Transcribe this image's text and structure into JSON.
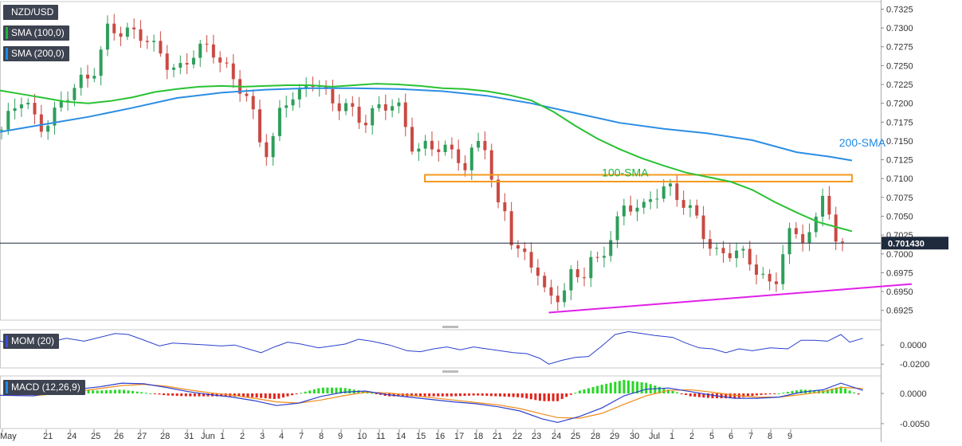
{
  "panel": {
    "symbol": "NZD/USD",
    "sma100_label": "SMA (100,0)",
    "sma200_label": "SMA (200,0)",
    "mom_label": "MOM (20)",
    "macd_label": "MACD (12,26,9)",
    "last_price": "0.701430"
  },
  "annotations": {
    "sma100": "100-SMA",
    "sma200": "200-SMA"
  },
  "colors": {
    "up": "#2e9e5b",
    "down": "#c94a43",
    "sma100": "#29c233",
    "sma200": "#2b8de3",
    "support": "#e020e8",
    "resistance": "#f39a1e",
    "mom": "#2c3fcf",
    "macd": "#2c3fcf",
    "signal": "#f08c1a",
    "hist_pos": "#27d827",
    "hist_neg": "#e2231a"
  },
  "chart_data": [
    {
      "type": "candlestick",
      "title": "NZD/USD",
      "y_ticks": [
        "0.7325",
        "0.7300",
        "0.7275",
        "0.7250",
        "0.7225",
        "0.7200",
        "0.7175",
        "0.7150",
        "0.7125",
        "0.7100",
        "0.7075",
        "0.7050",
        "0.7025",
        "0.7000",
        "0.6975",
        "0.6950",
        "0.6925"
      ],
      "x_ticks": [
        "May",
        "21",
        "24",
        "25",
        "26",
        "27",
        "28",
        "31",
        "Jun",
        "1",
        "2",
        "3",
        "4",
        "7",
        "8",
        "9",
        "10",
        "11",
        "14",
        "15",
        "16",
        "17",
        "18",
        "21",
        "22",
        "23",
        "24",
        "25",
        "28",
        "29",
        "30",
        "Jul",
        "1",
        "2",
        "5",
        "6",
        "7",
        "8",
        "9"
      ],
      "ylim": [
        0.6912,
        0.7335
      ],
      "last_price": 0.70143,
      "sma100": [
        [
          0,
          0.7217
        ],
        [
          10,
          0.7212
        ],
        [
          20,
          0.7207
        ],
        [
          30,
          0.7202
        ],
        [
          40,
          0.72
        ],
        [
          50,
          0.7203
        ],
        [
          60,
          0.7208
        ],
        [
          70,
          0.7215
        ],
        [
          80,
          0.7219
        ],
        [
          90,
          0.7222
        ],
        [
          100,
          0.7223
        ],
        [
          110,
          0.7222
        ],
        [
          120,
          0.7223
        ],
        [
          130,
          0.7224
        ],
        [
          140,
          0.7224
        ],
        [
          150,
          0.7222
        ],
        [
          160,
          0.7224
        ],
        [
          170,
          0.7226
        ],
        [
          180,
          0.7225
        ],
        [
          190,
          0.7223
        ],
        [
          200,
          0.722
        ],
        [
          210,
          0.7219
        ],
        [
          220,
          0.7216
        ],
        [
          230,
          0.7211
        ],
        [
          240,
          0.7204
        ],
        [
          250,
          0.7189
        ],
        [
          260,
          0.717
        ],
        [
          270,
          0.7153
        ],
        [
          280,
          0.7139
        ],
        [
          290,
          0.7127
        ],
        [
          300,
          0.7117
        ],
        [
          310,
          0.7108
        ],
        [
          320,
          0.7102
        ],
        [
          330,
          0.7096
        ],
        [
          340,
          0.7085
        ],
        [
          350,
          0.7069
        ],
        [
          360,
          0.7055
        ],
        [
          370,
          0.7042
        ],
        [
          380,
          0.7034
        ],
        [
          385,
          0.703
        ]
      ],
      "sma200": [
        [
          0,
          0.7162
        ],
        [
          20,
          0.7172
        ],
        [
          40,
          0.7182
        ],
        [
          60,
          0.7194
        ],
        [
          80,
          0.7207
        ],
        [
          100,
          0.7214
        ],
        [
          120,
          0.7218
        ],
        [
          140,
          0.722
        ],
        [
          160,
          0.722
        ],
        [
          180,
          0.7219
        ],
        [
          200,
          0.7216
        ],
        [
          220,
          0.721
        ],
        [
          240,
          0.72
        ],
        [
          260,
          0.7187
        ],
        [
          280,
          0.7174
        ],
        [
          300,
          0.7166
        ],
        [
          320,
          0.716
        ],
        [
          340,
          0.7151
        ],
        [
          360,
          0.7135
        ],
        [
          375,
          0.7129
        ],
        [
          385,
          0.7124
        ]
      ],
      "resistance_zone": {
        "x": [
          192,
          385
        ],
        "y": [
          0.7096,
          0.7105
        ]
      },
      "support_line": {
        "x": [
          248,
          412
        ],
        "y": [
          0.6922,
          0.696
        ]
      },
      "annotations": [
        {
          "text": "100-SMA",
          "x": 272,
          "y": 0.7145
        },
        {
          "text": "200-SMA",
          "x": 390,
          "y": 0.713
        }
      ]
    },
    {
      "type": "line",
      "title": "MOM (20)",
      "y_ticks": [
        "0.0000",
        "-0.0200"
      ],
      "ylim": [
        -0.024,
        0.016
      ],
      "values": [
        [
          0,
          0.004
        ],
        [
          8,
          0.001
        ],
        [
          15,
          0.0
        ],
        [
          22,
          0.003
        ],
        [
          30,
          0.007
        ],
        [
          38,
          0.004
        ],
        [
          45,
          0.008
        ],
        [
          52,
          0.012
        ],
        [
          58,
          0.011
        ],
        [
          64,
          0.006
        ],
        [
          72,
          -0.001
        ],
        [
          78,
          0.002
        ],
        [
          86,
          0.001
        ],
        [
          94,
          0.0
        ],
        [
          100,
          -0.001
        ],
        [
          106,
          0.0
        ],
        [
          112,
          -0.004
        ],
        [
          118,
          -0.008
        ],
        [
          124,
          -0.002
        ],
        [
          130,
          0.003
        ],
        [
          136,
          0.001
        ],
        [
          144,
          -0.003
        ],
        [
          150,
          -0.001
        ],
        [
          156,
          0.001
        ],
        [
          162,
          0.006
        ],
        [
          168,
          0.004
        ],
        [
          176,
          0.0
        ],
        [
          184,
          -0.006
        ],
        [
          190,
          -0.007
        ],
        [
          196,
          -0.004
        ],
        [
          202,
          -0.002
        ],
        [
          208,
          -0.005
        ],
        [
          214,
          -0.002
        ],
        [
          220,
          -0.004
        ],
        [
          226,
          -0.006
        ],
        [
          232,
          -0.008
        ],
        [
          238,
          -0.009
        ],
        [
          244,
          -0.014
        ],
        [
          248,
          -0.02
        ],
        [
          254,
          -0.016
        ],
        [
          260,
          -0.013
        ],
        [
          266,
          -0.012
        ],
        [
          272,
          -0.001
        ],
        [
          278,
          0.011
        ],
        [
          284,
          0.014
        ],
        [
          290,
          0.012
        ],
        [
          296,
          0.01
        ],
        [
          304,
          0.008
        ],
        [
          310,
          0.002
        ],
        [
          316,
          -0.003
        ],
        [
          322,
          -0.004
        ],
        [
          328,
          -0.008
        ],
        [
          334,
          -0.004
        ],
        [
          340,
          -0.006
        ],
        [
          348,
          -0.003
        ],
        [
          356,
          -0.004
        ],
        [
          362,
          0.005
        ],
        [
          368,
          0.005
        ],
        [
          374,
          0.004
        ],
        [
          380,
          0.011
        ],
        [
          384,
          0.003
        ],
        [
          390,
          0.007
        ]
      ]
    },
    {
      "type": "bar+line",
      "title": "MACD (12,26,9)",
      "y_ticks": [
        "0.0000",
        "-0.0050"
      ],
      "ylim": [
        -0.0058,
        0.0029
      ],
      "macd": [
        [
          0,
          -0.0003
        ],
        [
          15,
          -0.0004
        ],
        [
          30,
          0.0005
        ],
        [
          45,
          0.0011
        ],
        [
          55,
          0.0017
        ],
        [
          65,
          0.0016
        ],
        [
          75,
          0.001
        ],
        [
          85,
          0.0003
        ],
        [
          95,
          -0.0002
        ],
        [
          105,
          -0.0006
        ],
        [
          115,
          -0.0012
        ],
        [
          125,
          -0.002
        ],
        [
          135,
          -0.0016
        ],
        [
          145,
          -0.0005
        ],
        [
          155,
          0.0002
        ],
        [
          165,
          0.0004
        ],
        [
          175,
          -0.0002
        ],
        [
          185,
          -0.0006
        ],
        [
          195,
          -0.001
        ],
        [
          205,
          -0.0014
        ],
        [
          215,
          -0.0017
        ],
        [
          225,
          -0.0022
        ],
        [
          235,
          -0.0029
        ],
        [
          245,
          -0.0042
        ],
        [
          252,
          -0.0048
        ],
        [
          262,
          -0.0038
        ],
        [
          272,
          -0.0024
        ],
        [
          282,
          -0.0004
        ],
        [
          292,
          0.0007
        ],
        [
          302,
          0.0009
        ],
        [
          312,
          0.0003
        ],
        [
          322,
          -0.0003
        ],
        [
          332,
          -0.0008
        ],
        [
          342,
          -0.0008
        ],
        [
          352,
          -0.0006
        ],
        [
          362,
          0.0002
        ],
        [
          372,
          0.0006
        ],
        [
          380,
          0.0017
        ],
        [
          390,
          0.0005
        ]
      ],
      "signal": [
        [
          0,
          -0.0003
        ],
        [
          15,
          -0.0004
        ],
        [
          30,
          0.0001
        ],
        [
          45,
          0.0008
        ],
        [
          55,
          0.0013
        ],
        [
          65,
          0.0015
        ],
        [
          75,
          0.0012
        ],
        [
          85,
          0.0006
        ],
        [
          95,
          0.0001
        ],
        [
          105,
          -0.0003
        ],
        [
          115,
          -0.0008
        ],
        [
          125,
          -0.0014
        ],
        [
          135,
          -0.0016
        ],
        [
          145,
          -0.0011
        ],
        [
          155,
          -0.0004
        ],
        [
          165,
          0.0002
        ],
        [
          175,
          0.0001
        ],
        [
          185,
          -0.0003
        ],
        [
          195,
          -0.0007
        ],
        [
          205,
          -0.0011
        ],
        [
          215,
          -0.0015
        ],
        [
          225,
          -0.0019
        ],
        [
          235,
          -0.0025
        ],
        [
          245,
          -0.0034
        ],
        [
          252,
          -0.004
        ],
        [
          262,
          -0.0041
        ],
        [
          272,
          -0.0033
        ],
        [
          282,
          -0.0018
        ],
        [
          292,
          -0.0004
        ],
        [
          302,
          0.0005
        ],
        [
          312,
          0.0006
        ],
        [
          322,
          0.0002
        ],
        [
          332,
          -0.0003
        ],
        [
          342,
          -0.0006
        ],
        [
          352,
          -0.0006
        ],
        [
          362,
          -0.0002
        ],
        [
          372,
          0.0003
        ],
        [
          380,
          0.001
        ],
        [
          390,
          0.0008
        ]
      ]
    }
  ],
  "axis_labels": {
    "price": [
      "0.7325",
      "0.7300",
      "0.7275",
      "0.7250",
      "0.7225",
      "0.7200",
      "0.7175",
      "0.7150",
      "0.7125",
      "0.7100",
      "0.7075",
      "0.7050",
      "0.7025",
      "0.7000",
      "0.6975",
      "0.6950",
      "0.6925"
    ],
    "mom": [
      "0.0000",
      "-0.0200"
    ],
    "macd": [
      "0.0000",
      "-0.0050"
    ],
    "dates": [
      "May",
      "21",
      "24",
      "25",
      "26",
      "27",
      "28",
      "31",
      "Jun",
      "1",
      "2",
      "3",
      "4",
      "7",
      "8",
      "9",
      "10",
      "11",
      "14",
      "15",
      "16",
      "17",
      "18",
      "21",
      "22",
      "23",
      "24",
      "25",
      "28",
      "29",
      "30",
      "Jul",
      "1",
      "2",
      "5",
      "6",
      "7",
      "8",
      "9"
    ]
  }
}
